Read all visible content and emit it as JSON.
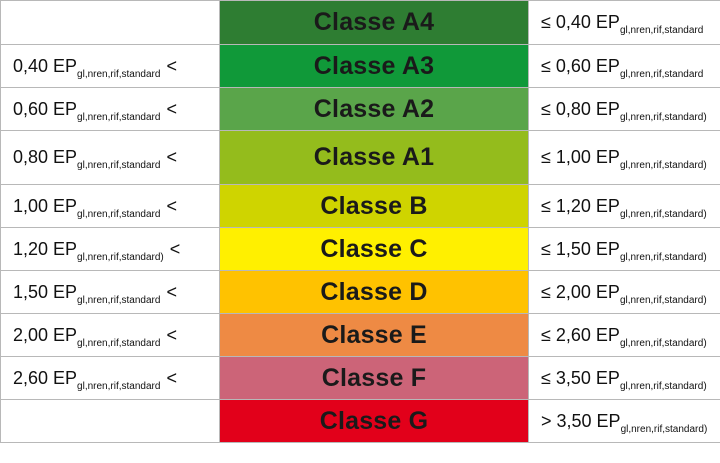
{
  "rows": [
    {
      "left": "",
      "left_sub": "",
      "left_op": "",
      "label": "Classe A4",
      "color": "#2e7d32",
      "right_op": "≤ 0,40 EP",
      "right_sub": "gl,nren,rif,standard"
    },
    {
      "left": "0,40 EP",
      "left_sub": "gl,nren,rif,standard",
      "left_op": "<",
      "label": "Classe A3",
      "color": "#109939",
      "right_op": "≤ 0,60 EP",
      "right_sub": "gl,nren,rif,standard"
    },
    {
      "left": "0,60 EP",
      "left_sub": "gl,nren,rif,standard",
      "left_op": "<",
      "label": "Classe A2",
      "color": "#5aa54a",
      "right_op": "≤ 0,80 EP",
      "right_sub": "gl,nren,rif,standard)"
    },
    {
      "left": "0,80 EP",
      "left_sub": "gl,nren,rif,standard",
      "left_op": "<",
      "label": "Classe A1",
      "color": "#94bc1c",
      "right_op": "≤ 1,00 EP",
      "right_sub": "gl,nren,rif,standard)"
    },
    {
      "left": "1,00 EP",
      "left_sub": "gl,nren,rif,standard",
      "left_op": "<",
      "label": "Classe B",
      "color": "#cfd400",
      "right_op": "≤ 1,20 EP",
      "right_sub": "gl,nren,rif,standard)"
    },
    {
      "left": "1,20 EP",
      "left_sub": "gl,nren,rif,standard)",
      "left_op": "<",
      "label": "Classe C",
      "color": "#fff000",
      "right_op": "≤ 1,50 EP",
      "right_sub": "gl,nren,rif,standard)"
    },
    {
      "left": "1,50 EP",
      "left_sub": "gl,nren,rif,standard",
      "left_op": "<",
      "label": "Classe D",
      "color": "#ffc200",
      "right_op": "≤ 2,00 EP",
      "right_sub": "gl,nren,rif,standard)"
    },
    {
      "left": "2,00 EP",
      "left_sub": "gl,nren,rif,standard",
      "left_op": "<",
      "label": "Classe E",
      "color": "#ee8a44",
      "right_op": "≤ 2,60 EP",
      "right_sub": "gl,nren,rif,standard)"
    },
    {
      "left": "2,60 EP",
      "left_sub": "gl,nren,rif,standard",
      "left_op": "<",
      "label": "Classe F",
      "color": "#cc6478",
      "right_op": "≤ 3,50 EP",
      "right_sub": "gl,nren,rif,standard)"
    },
    {
      "left": "",
      "left_sub": "",
      "left_op": "",
      "label": "Classe G",
      "color": "#e2001a",
      "right_op": "> 3,50 EP",
      "right_sub": "gl,nren,rif,standard)"
    }
  ]
}
